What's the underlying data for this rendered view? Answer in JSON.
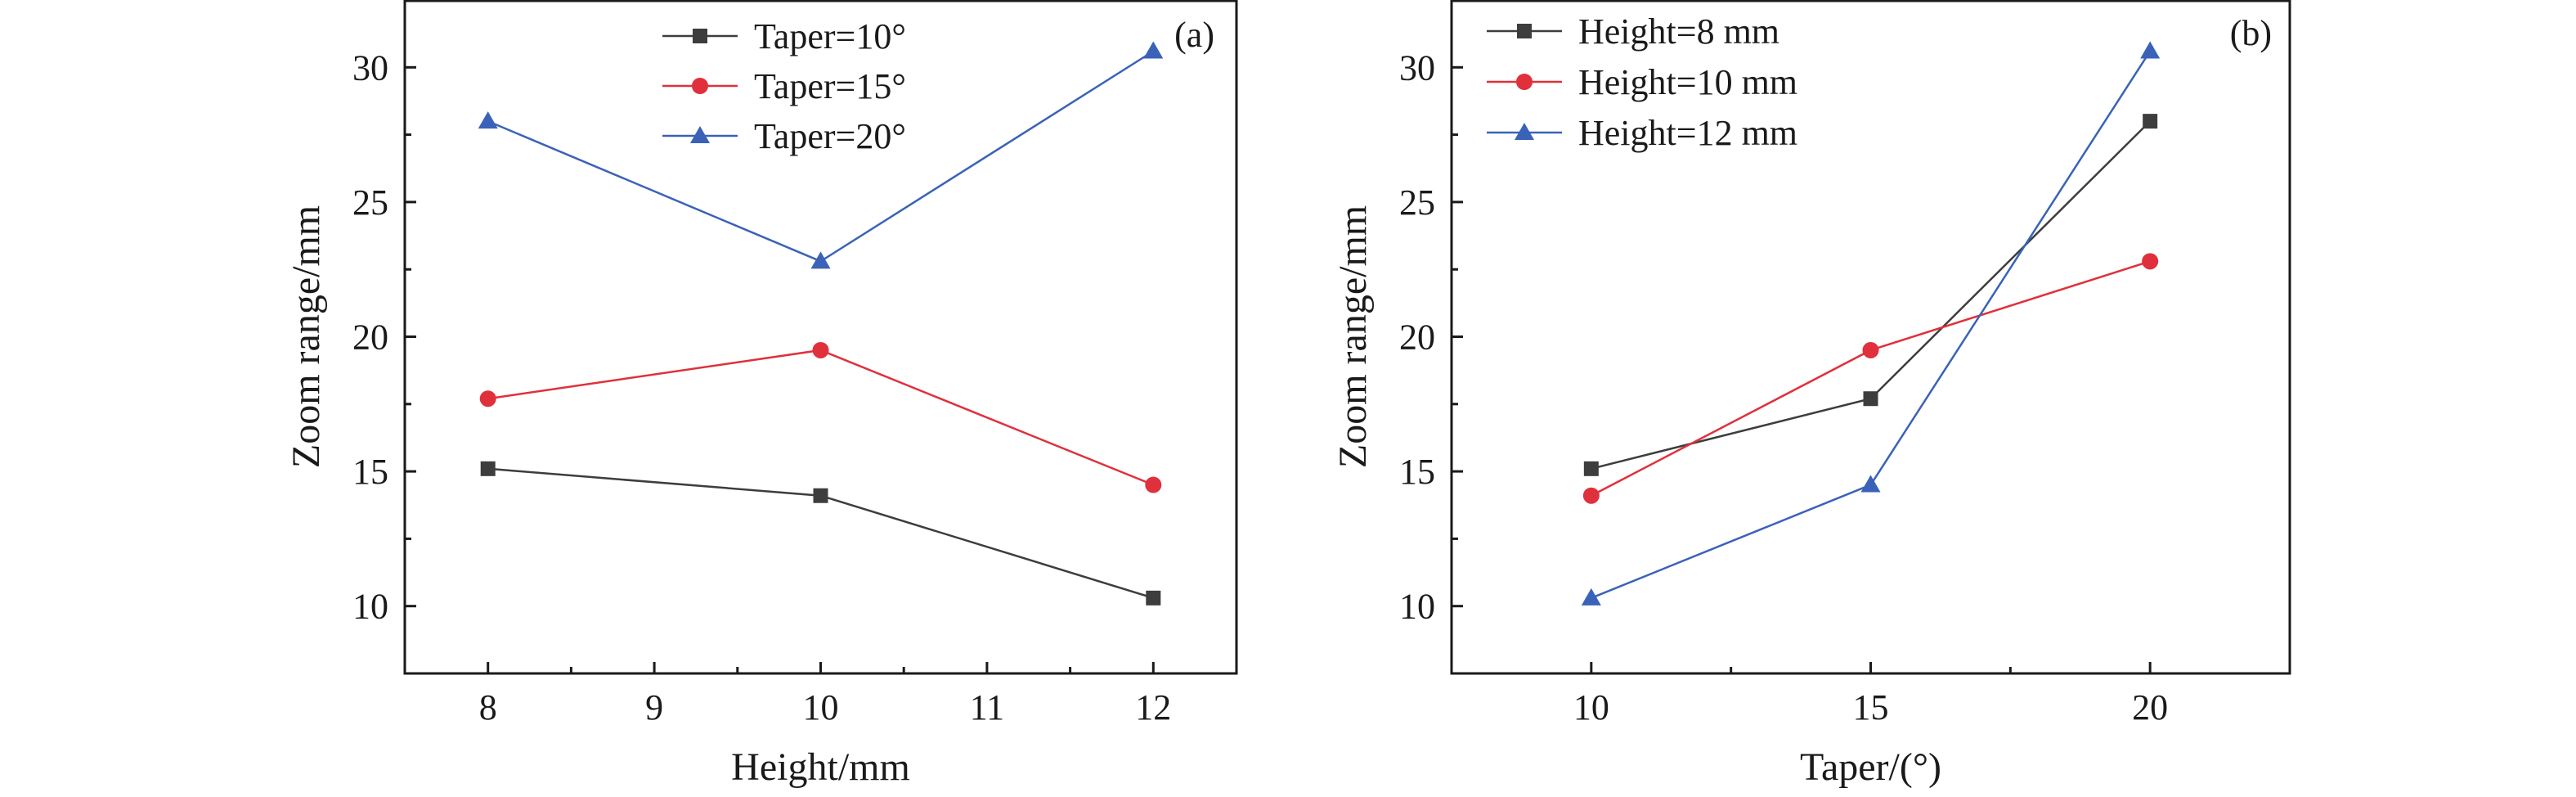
{
  "chart_data": [
    {
      "id": "a",
      "type": "line",
      "panel_label": "(a)",
      "xlabel": "Height/mm",
      "ylabel": "Zoom range/mm",
      "xlim": [
        7.5,
        12.5
      ],
      "ylim": [
        7.5,
        32.5
      ],
      "xticks": [
        8,
        9,
        10,
        11,
        12
      ],
      "yticks": [
        10,
        15,
        20,
        25,
        30
      ],
      "x": [
        8,
        10,
        12
      ],
      "legend_position": "top-center",
      "grid": false,
      "series": [
        {
          "name": "Taper=10°",
          "color": "#3d3d3d",
          "marker": "square",
          "values": [
            15.1,
            14.1,
            10.3
          ]
        },
        {
          "name": "Taper=15°",
          "color": "#e0303b",
          "marker": "circle",
          "values": [
            17.7,
            19.5,
            14.5
          ]
        },
        {
          "name": "Taper=20°",
          "color": "#3a62b8",
          "marker": "triangle",
          "values": [
            28.0,
            22.8,
            30.6
          ]
        }
      ]
    },
    {
      "id": "b",
      "type": "line",
      "panel_label": "(b)",
      "xlabel": "Taper/(°)",
      "ylabel": "Zoom range/mm",
      "xlim": [
        7.5,
        22.5
      ],
      "ylim": [
        7.5,
        32.5
      ],
      "xticks": [
        10,
        15,
        20
      ],
      "yticks": [
        10,
        15,
        20,
        25,
        30
      ],
      "x": [
        10,
        15,
        20
      ],
      "legend_position": "top-left",
      "grid": false,
      "series": [
        {
          "name": "Height=8 mm",
          "color": "#3d3d3d",
          "marker": "square",
          "values": [
            15.1,
            17.7,
            28.0
          ]
        },
        {
          "name": "Height=10 mm",
          "color": "#e0303b",
          "marker": "circle",
          "values": [
            14.1,
            19.5,
            22.8
          ]
        },
        {
          "name": "Height=12 mm",
          "color": "#3a62b8",
          "marker": "triangle",
          "values": [
            10.3,
            14.5,
            30.6
          ]
        }
      ]
    }
  ]
}
